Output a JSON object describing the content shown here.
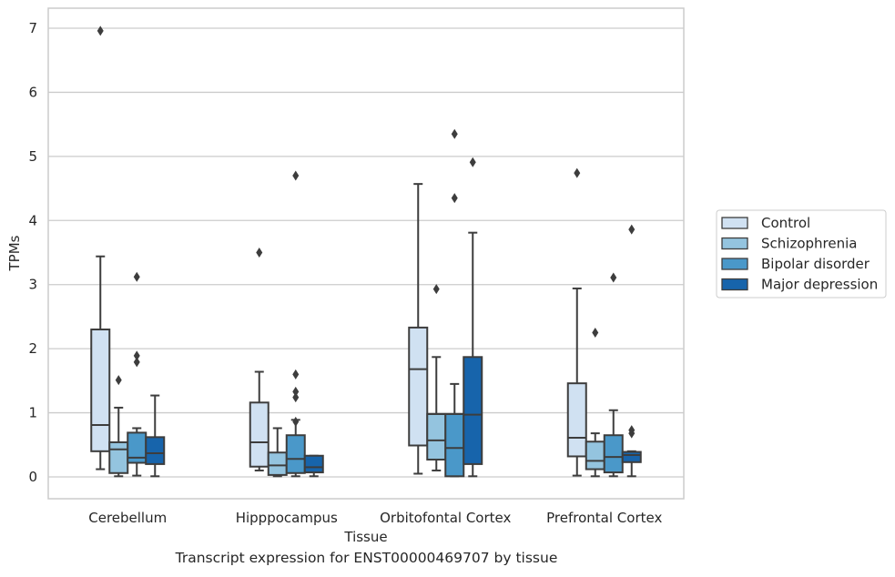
{
  "caption": "Transcript expression for ENST00000469707 by tissue",
  "chart_data": {
    "type": "box",
    "xlabel": "Tissue",
    "ylabel": "TPMs",
    "ylim": [
      -0.33,
      7.32
    ],
    "yticks": [
      0,
      1,
      2,
      3,
      4,
      5,
      6,
      7
    ],
    "grid": "horizontal",
    "legend_position": "right",
    "categories": [
      "Cerebellum",
      "Hipppocampus",
      "Orbitofontal Cortex",
      "Prefrontal Cortex"
    ],
    "series": [
      {
        "name": "Control",
        "color": "#d0e1f2",
        "boxes": [
          {
            "whislo": 0.12,
            "q1": 0.4,
            "med": 0.81,
            "q3": 2.3,
            "whishi": 3.44,
            "fliers": [
              6.96
            ]
          },
          {
            "whislo": 0.1,
            "q1": 0.16,
            "med": 0.54,
            "q3": 1.16,
            "whishi": 1.64,
            "fliers": [
              3.5
            ]
          },
          {
            "whislo": 0.05,
            "q1": 0.49,
            "med": 1.68,
            "q3": 2.33,
            "whishi": 4.57,
            "fliers": []
          },
          {
            "whislo": 0.02,
            "q1": 0.32,
            "med": 0.61,
            "q3": 1.46,
            "whishi": 2.94,
            "fliers": [
              4.74
            ]
          }
        ]
      },
      {
        "name": "Schizophrenia",
        "color": "#94c4df",
        "boxes": [
          {
            "whislo": 0.01,
            "q1": 0.06,
            "med": 0.43,
            "q3": 0.54,
            "whishi": 1.08,
            "fliers": [
              1.51
            ]
          },
          {
            "whislo": 0.01,
            "q1": 0.03,
            "med": 0.18,
            "q3": 0.38,
            "whishi": 0.76,
            "fliers": []
          },
          {
            "whislo": 0.1,
            "q1": 0.27,
            "med": 0.57,
            "q3": 0.98,
            "whishi": 1.87,
            "fliers": [
              2.93
            ]
          },
          {
            "whislo": 0.01,
            "q1": 0.12,
            "med": 0.25,
            "q3": 0.55,
            "whishi": 0.68,
            "fliers": [
              2.25
            ]
          }
        ]
      },
      {
        "name": "Bipolar disorder",
        "color": "#4a98c9",
        "boxes": [
          {
            "whislo": 0.02,
            "q1": 0.22,
            "med": 0.3,
            "q3": 0.69,
            "whishi": 0.76,
            "fliers": [
              1.79,
              1.89,
              3.12
            ]
          },
          {
            "whislo": 0.01,
            "q1": 0.06,
            "med": 0.28,
            "q3": 0.65,
            "whishi": 0.89,
            "fliers": [
              0.86,
              1.24,
              1.33,
              1.6,
              4.7
            ]
          },
          {
            "whislo": 0.01,
            "q1": 0.01,
            "med": 0.45,
            "q3": 0.98,
            "whishi": 1.45,
            "fliers": [
              4.35,
              5.35
            ]
          },
          {
            "whislo": 0.01,
            "q1": 0.07,
            "med": 0.31,
            "q3": 0.65,
            "whishi": 1.04,
            "fliers": [
              3.11
            ]
          }
        ]
      },
      {
        "name": "Major depression",
        "color": "#1764ab",
        "boxes": [
          {
            "whislo": 0.01,
            "q1": 0.2,
            "med": 0.37,
            "q3": 0.62,
            "whishi": 1.27,
            "fliers": []
          },
          {
            "whislo": 0.01,
            "q1": 0.07,
            "med": 0.15,
            "q3": 0.33,
            "whishi": 0.33,
            "fliers": []
          },
          {
            "whislo": 0.01,
            "q1": 0.2,
            "med": 0.97,
            "q3": 1.87,
            "whishi": 3.81,
            "fliers": [
              4.91
            ]
          },
          {
            "whislo": 0.01,
            "q1": 0.23,
            "med": 0.34,
            "q3": 0.39,
            "whishi": 0.4,
            "fliers": [
              0.68,
              0.73,
              3.86
            ]
          }
        ]
      }
    ]
  }
}
